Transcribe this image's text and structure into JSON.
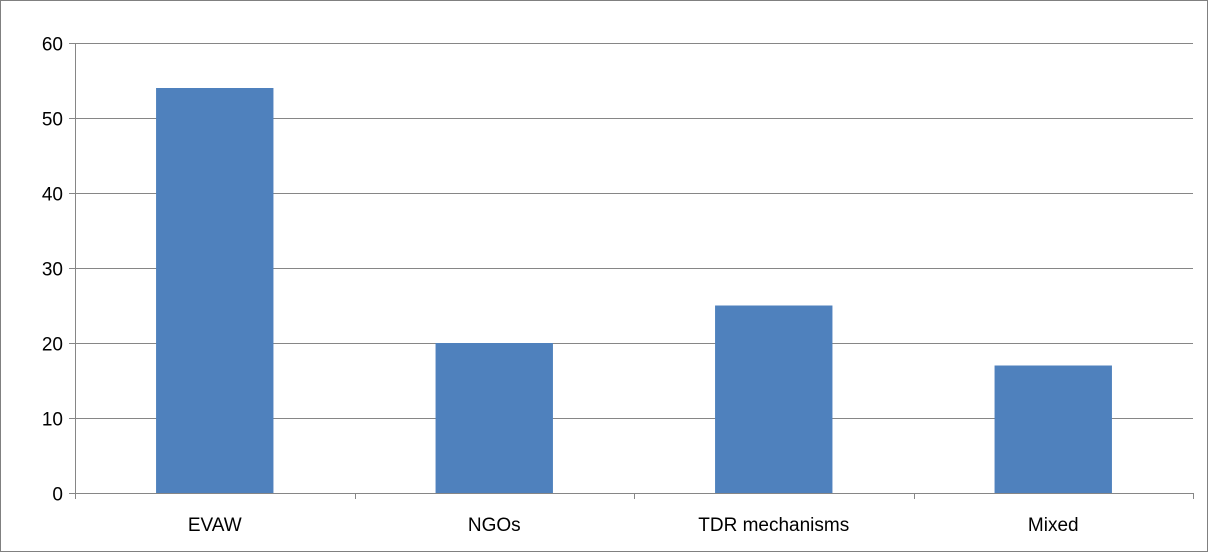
{
  "chart_data": {
    "type": "bar",
    "title": "",
    "xlabel": "",
    "ylabel": "",
    "categories": [
      "EVAW",
      "NGOs",
      "TDR mechanisms",
      "Mixed"
    ],
    "values": [
      54,
      20,
      25,
      17
    ],
    "ylim": [
      0,
      60
    ],
    "yticks": [
      "0",
      "10",
      "20",
      "30",
      "40",
      "50",
      "60"
    ],
    "grid": true,
    "legend": "none",
    "colors": {
      "bar": "#4F81BD",
      "grid": "#868686",
      "axis": "#868686"
    }
  }
}
